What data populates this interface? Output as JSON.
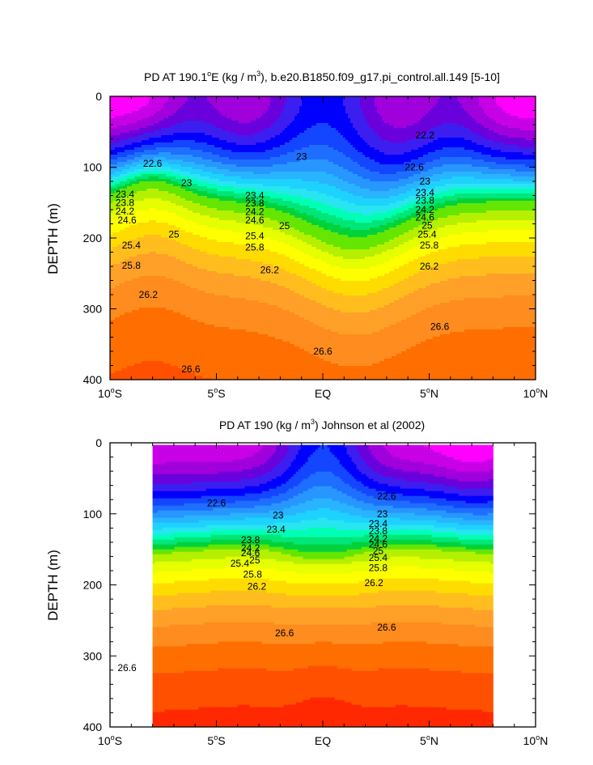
{
  "chart_data": [
    {
      "type": "contour",
      "title_prefix": "PD AT 190.1",
      "title_superscript": "o",
      "title_mid": "E (kg / m",
      "title_unit_exp": "3",
      "title_suffix": "), b.e20.B1850.f09_g17.pi_control.all.149 [5-10]",
      "ylabel": "DEPTH (m)",
      "xlabel": "",
      "ylim": [
        400,
        0
      ],
      "xlim": [
        -10,
        10
      ],
      "yticks": [
        "0",
        "100",
        "200",
        "300",
        "400"
      ],
      "xticks": [
        "10°S",
        "5°S",
        "EQ",
        "5°N",
        "10°N"
      ],
      "contour_interval": 0.2,
      "contour_labels": [
        {
          "text": "22.2",
          "lat": 4.8,
          "depth": 55
        },
        {
          "text": "22.6",
          "lat": -8.0,
          "depth": 95
        },
        {
          "text": "22.6",
          "lat": 4.3,
          "depth": 100
        },
        {
          "text": "23",
          "lat": -6.4,
          "depth": 122
        },
        {
          "text": "23",
          "lat": -1.0,
          "depth": 85
        },
        {
          "text": "23",
          "lat": 4.8,
          "depth": 120
        },
        {
          "text": "23.4",
          "lat": -9.3,
          "depth": 138
        },
        {
          "text": "23.4",
          "lat": -3.2,
          "depth": 140
        },
        {
          "text": "23.4",
          "lat": 4.8,
          "depth": 136
        },
        {
          "text": "23.8",
          "lat": -9.3,
          "depth": 150
        },
        {
          "text": "23.8",
          "lat": -3.2,
          "depth": 151
        },
        {
          "text": "23.8",
          "lat": 4.8,
          "depth": 147
        },
        {
          "text": "24.2",
          "lat": -9.3,
          "depth": 162
        },
        {
          "text": "24.2",
          "lat": -3.2,
          "depth": 163
        },
        {
          "text": "24.2",
          "lat": 4.8,
          "depth": 160
        },
        {
          "text": "24.6",
          "lat": -9.2,
          "depth": 175
        },
        {
          "text": "24.6",
          "lat": -3.2,
          "depth": 175
        },
        {
          "text": "24.6",
          "lat": 4.8,
          "depth": 171
        },
        {
          "text": "25",
          "lat": -1.8,
          "depth": 183
        },
        {
          "text": "25",
          "lat": -7.0,
          "depth": 195
        },
        {
          "text": "25",
          "lat": 4.9,
          "depth": 182
        },
        {
          "text": "25.4",
          "lat": -9.0,
          "depth": 210
        },
        {
          "text": "25.4",
          "lat": -3.2,
          "depth": 197
        },
        {
          "text": "25.4",
          "lat": 4.9,
          "depth": 195
        },
        {
          "text": "25.8",
          "lat": -3.2,
          "depth": 213
        },
        {
          "text": "25.8",
          "lat": -9.0,
          "depth": 239
        },
        {
          "text": "25.8",
          "lat": 5.0,
          "depth": 210
        },
        {
          "text": "26.2",
          "lat": -2.5,
          "depth": 245
        },
        {
          "text": "26.2",
          "lat": 5.0,
          "depth": 240
        },
        {
          "text": "26.2",
          "lat": -8.2,
          "depth": 280
        },
        {
          "text": "26.6",
          "lat": 5.5,
          "depth": 325
        },
        {
          "text": "26.6",
          "lat": 0.0,
          "depth": 360
        },
        {
          "text": "26.6",
          "lat": -6.2,
          "depth": 385
        }
      ]
    },
    {
      "type": "contour",
      "title_prefix": "PD AT 190 (kg / m",
      "title_unit_exp": "3",
      "title_suffix": ") Johnson et al (2002)",
      "ylabel": "DEPTH (m)",
      "xlabel": "",
      "ylim": [
        400,
        0
      ],
      "xlim": [
        -10,
        10
      ],
      "data_lat_range": [
        -8,
        8
      ],
      "yticks": [
        "0",
        "100",
        "200",
        "300",
        "400"
      ],
      "xticks": [
        "10°S",
        "5°S",
        "EQ",
        "5°N",
        "10°N"
      ],
      "contour_interval": 0.2,
      "contour_labels": [
        {
          "text": "22.6",
          "lat": -5.0,
          "depth": 85
        },
        {
          "text": "22.6",
          "lat": 3.0,
          "depth": 75
        },
        {
          "text": "23",
          "lat": -2.1,
          "depth": 102
        },
        {
          "text": "23",
          "lat": 2.8,
          "depth": 100
        },
        {
          "text": "23.4",
          "lat": -2.2,
          "depth": 122
        },
        {
          "text": "23.4",
          "lat": 2.6,
          "depth": 114
        },
        {
          "text": "23.8",
          "lat": -3.4,
          "depth": 137
        },
        {
          "text": "23.8",
          "lat": 2.6,
          "depth": 124
        },
        {
          "text": "24.2",
          "lat": -3.4,
          "depth": 148
        },
        {
          "text": "24.2",
          "lat": 2.6,
          "depth": 135
        },
        {
          "text": "24.6",
          "lat": -3.4,
          "depth": 155
        },
        {
          "text": "24.6",
          "lat": 2.6,
          "depth": 143
        },
        {
          "text": "25",
          "lat": -3.2,
          "depth": 165
        },
        {
          "text": "25",
          "lat": 2.6,
          "depth": 152
        },
        {
          "text": "25.4",
          "lat": -3.9,
          "depth": 170
        },
        {
          "text": "25.4",
          "lat": 2.6,
          "depth": 162
        },
        {
          "text": "25.8",
          "lat": -3.3,
          "depth": 185
        },
        {
          "text": "25.8",
          "lat": 2.6,
          "depth": 176
        },
        {
          "text": "26.2",
          "lat": -3.1,
          "depth": 202
        },
        {
          "text": "26.2",
          "lat": 2.4,
          "depth": 197
        },
        {
          "text": "26.6",
          "lat": -1.8,
          "depth": 268
        },
        {
          "text": "26.6",
          "lat": 3.0,
          "depth": 260
        },
        {
          "text": "26.6",
          "lat": -9.2,
          "depth": 317
        }
      ]
    }
  ]
}
